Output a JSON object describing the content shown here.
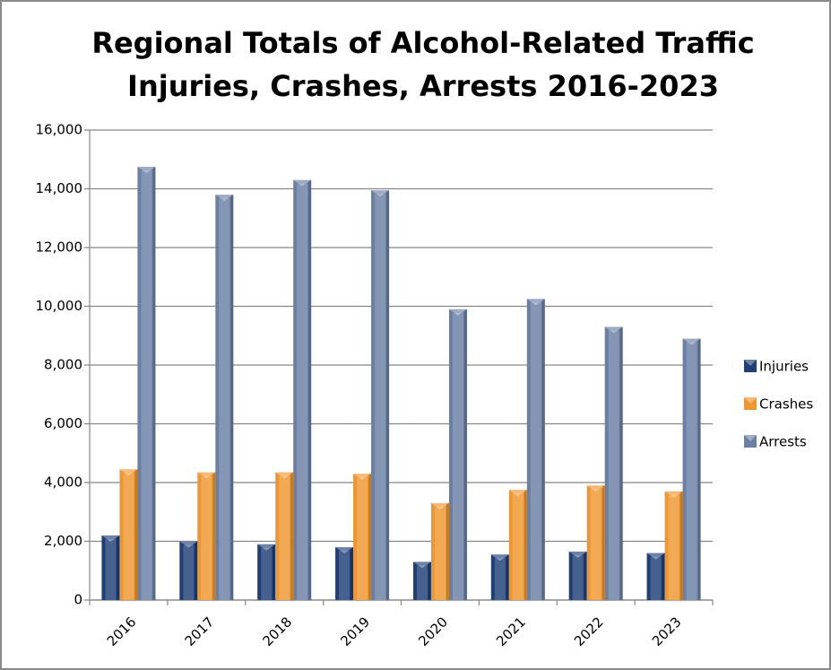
{
  "chart_data": {
    "type": "bar",
    "title": [
      "Regional Totals of Alcohol-Related Traffic",
      "Injuries, Crashes, Arrests 2016-2023"
    ],
    "categories": [
      "2016",
      "2017",
      "2018",
      "2019",
      "2020",
      "2021",
      "2022",
      "2023"
    ],
    "series": [
      {
        "name": "Injuries",
        "color": "#1f3f77",
        "values": [
          2200,
          2000,
          1900,
          1800,
          1300,
          1550,
          1650,
          1600
        ]
      },
      {
        "name": "Crashes",
        "color": "#f0962e",
        "values": [
          4450,
          4350,
          4350,
          4300,
          3300,
          3750,
          3900,
          3700
        ]
      },
      {
        "name": "Arrests",
        "color": "#6a7fa3",
        "values": [
          14750,
          13800,
          14300,
          13950,
          9900,
          10250,
          9300,
          8900
        ]
      }
    ],
    "ylim": [
      0,
      16000
    ],
    "yticks": [
      0,
      {
        "value": 2000,
        "label": "2,000"
      },
      {
        "value": 4000,
        "label": "4,000"
      },
      {
        "value": 6000,
        "label": "6,000"
      },
      {
        "value": 8000,
        "label": "8,000"
      },
      {
        "value": 10000,
        "label": "10,000"
      },
      {
        "value": 12000,
        "label": "12,000"
      },
      {
        "value": 14000,
        "label": "14,000"
      },
      {
        "value": 16000,
        "label": "16,000"
      }
    ],
    "grid": true,
    "legend": "right"
  }
}
